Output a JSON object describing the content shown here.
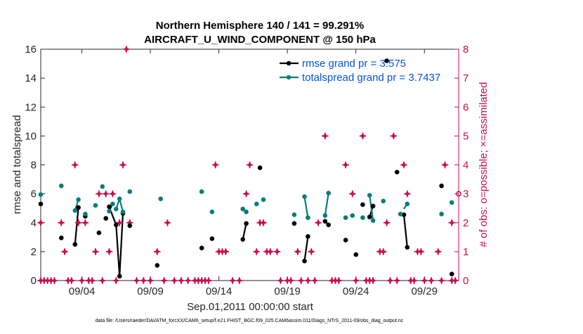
{
  "chart_data": {
    "type": "line",
    "title_line1": "Northern Hemisphere 140 / 141 = 99.291%",
    "title_line2": "AIRCRAFT_U_WIND_COMPONENT @ 150 hPa",
    "xlabel": "Sep.01,2011 00:00:00 start",
    "ylabel_left": "rmse and totalspread",
    "ylabel_right": "# of obs: o=possible; ×=assimilated",
    "ylim_left": [
      0,
      16
    ],
    "ylim_right": [
      0,
      8
    ],
    "xlim": [
      1.0,
      31.5
    ],
    "x_ticks": [
      4,
      9,
      14,
      19,
      24,
      29
    ],
    "x_tick_labels": [
      "09/04",
      "09/09",
      "09/14",
      "09/19",
      "09/24",
      "09/29"
    ],
    "y_left_ticks": [
      "0",
      "2",
      "4",
      "6",
      "8",
      "10",
      "12",
      "14",
      "16"
    ],
    "y_right_ticks": [
      "0",
      "1",
      "2",
      "3",
      "4",
      "5",
      "6",
      "7",
      "8"
    ],
    "legend": [
      "rmse grand pr = 3.575",
      "totalspread grand pr = 3.7437"
    ],
    "footnote": "data file: /Users/raeder/DAI/ATM_forcXX/CAM6_setup/f.e21.FHIST_BGC.f09_025.CAM6assim.011/Diags_NTrS_2011-09/obs_diag_output.nc",
    "series": [
      {
        "name": "rmse",
        "color": "#000000",
        "points": [
          [
            1.0,
            5.3
          ],
          [
            2.5,
            2.95
          ],
          [
            3.5,
            2.5
          ],
          [
            3.75,
            5.05
          ],
          [
            4.25,
            4.45
          ],
          [
            5.25,
            3.3
          ],
          [
            5.75,
            4.3
          ],
          [
            6.0,
            5.1
          ],
          [
            6.5,
            3.85
          ],
          [
            6.75,
            0.3
          ],
          [
            7.0,
            4.65
          ],
          [
            7.5,
            3.8
          ],
          [
            9.5,
            1.05
          ],
          [
            12.75,
            2.25
          ],
          [
            13.5,
            2.9
          ],
          [
            15.75,
            2.85
          ],
          [
            16.0,
            3.95
          ],
          [
            17.0,
            7.8
          ],
          [
            19.5,
            3.95
          ],
          [
            20.25,
            1.35
          ],
          [
            20.5,
            3.05
          ],
          [
            21.75,
            4.1
          ],
          [
            22.0,
            3.85
          ],
          [
            23.25,
            2.8
          ],
          [
            24.0,
            1.8
          ],
          [
            24.5,
            5.25
          ],
          [
            25.0,
            4.4
          ],
          [
            25.25,
            5.15
          ],
          [
            26.25,
            15.2
          ],
          [
            27.0,
            7.5
          ],
          [
            27.5,
            4.55
          ],
          [
            27.75,
            2.3
          ],
          [
            30.25,
            6.55
          ],
          [
            31.0,
            0.45
          ]
        ],
        "segments": [
          [
            [
              3.5,
              2.5
            ],
            [
              3.75,
              5.05
            ]
          ],
          [
            [
              6.0,
              5.1
            ],
            [
              6.5,
              3.85
            ],
            [
              6.75,
              0.3
            ],
            [
              7.0,
              4.65
            ]
          ],
          [
            [
              15.75,
              2.85
            ],
            [
              16.0,
              3.95
            ]
          ],
          [
            [
              20.25,
              1.35
            ],
            [
              20.5,
              3.05
            ]
          ],
          [
            [
              21.75,
              4.1
            ],
            [
              22.0,
              3.85
            ]
          ],
          [
            [
              25.0,
              4.4
            ],
            [
              25.25,
              5.15
            ]
          ],
          [
            [
              27.5,
              4.55
            ],
            [
              27.75,
              2.3
            ]
          ]
        ]
      },
      {
        "name": "totalspread",
        "color": "#0b7b7b",
        "points": [
          [
            1.0,
            5.95
          ],
          [
            2.5,
            6.55
          ],
          [
            3.5,
            4.85
          ],
          [
            3.75,
            5.6
          ],
          [
            4.25,
            4.6
          ],
          [
            5.0,
            5.2
          ],
          [
            5.5,
            6.5
          ],
          [
            6.0,
            4.8
          ],
          [
            6.25,
            5.3
          ],
          [
            6.5,
            4.95
          ],
          [
            6.75,
            5.65
          ],
          [
            7.0,
            4.75
          ],
          [
            7.5,
            6.15
          ],
          [
            9.75,
            5.65
          ],
          [
            12.75,
            6.15
          ],
          [
            13.5,
            4.75
          ],
          [
            15.75,
            4.95
          ],
          [
            16.0,
            4.75
          ],
          [
            16.75,
            5.3
          ],
          [
            17.25,
            5.6
          ],
          [
            19.5,
            4.55
          ],
          [
            20.25,
            5.8
          ],
          [
            20.5,
            4.35
          ],
          [
            21.75,
            4.5
          ],
          [
            22.0,
            6.05
          ],
          [
            23.25,
            4.35
          ],
          [
            23.75,
            4.5
          ],
          [
            24.5,
            4.35
          ],
          [
            25.0,
            5.9
          ],
          [
            25.25,
            4.15
          ],
          [
            26.0,
            5.5
          ],
          [
            27.25,
            4.6
          ],
          [
            27.75,
            5.3
          ],
          [
            30.25,
            4.6
          ],
          [
            31.0,
            5.4
          ]
        ],
        "segments": [
          [
            [
              3.5,
              4.85
            ],
            [
              3.75,
              5.6
            ]
          ],
          [
            [
              6.0,
              4.8
            ],
            [
              6.25,
              5.3
            ]
          ],
          [
            [
              6.5,
              4.95
            ],
            [
              6.75,
              5.65
            ],
            [
              7.0,
              4.75
            ]
          ],
          [
            [
              15.75,
              4.95
            ],
            [
              16.0,
              4.75
            ]
          ],
          [
            [
              20.25,
              5.8
            ],
            [
              20.5,
              4.35
            ]
          ],
          [
            [
              21.75,
              4.5
            ],
            [
              22.0,
              6.05
            ]
          ],
          [
            [
              25.0,
              5.9
            ],
            [
              25.25,
              4.15
            ]
          ],
          [
            [
              27.5,
              4.95
            ],
            [
              27.75,
              5.3
            ]
          ]
        ]
      },
      {
        "name": "obs_count",
        "axis": "right",
        "color": "#cc0c50",
        "points": [
          [
            1.0,
            0
          ],
          [
            1.0,
            2
          ],
          [
            1.25,
            0
          ],
          [
            1.5,
            0
          ],
          [
            1.75,
            0
          ],
          [
            2.0,
            0
          ],
          [
            2.5,
            2
          ],
          [
            2.75,
            1
          ],
          [
            3.0,
            0
          ],
          [
            3.25,
            0
          ],
          [
            3.5,
            4
          ],
          [
            3.75,
            2
          ],
          [
            4.0,
            0
          ],
          [
            4.25,
            2
          ],
          [
            4.5,
            0
          ],
          [
            4.75,
            0
          ],
          [
            5.0,
            1
          ],
          [
            5.25,
            3
          ],
          [
            5.5,
            0
          ],
          [
            5.75,
            3
          ],
          [
            6.0,
            1
          ],
          [
            6.25,
            3
          ],
          [
            6.5,
            0
          ],
          [
            6.75,
            2
          ],
          [
            7.0,
            4
          ],
          [
            7.25,
            8
          ],
          [
            7.5,
            2
          ],
          [
            8.0,
            0
          ],
          [
            8.5,
            0
          ],
          [
            9.0,
            0
          ],
          [
            9.5,
            1
          ],
          [
            10.0,
            0
          ],
          [
            10.25,
            2
          ],
          [
            10.75,
            0
          ],
          [
            11.25,
            0
          ],
          [
            11.75,
            0
          ],
          [
            12.25,
            0
          ],
          [
            12.5,
            0
          ],
          [
            12.75,
            0
          ],
          [
            13.0,
            0
          ],
          [
            13.25,
            0
          ],
          [
            13.75,
            4
          ],
          [
            14.0,
            1
          ],
          [
            14.25,
            1
          ],
          [
            14.5,
            1
          ],
          [
            15.0,
            0
          ],
          [
            15.5,
            0
          ],
          [
            16.0,
            3
          ],
          [
            16.25,
            4
          ],
          [
            16.75,
            1
          ],
          [
            17.0,
            2
          ],
          [
            17.25,
            2
          ],
          [
            17.5,
            1
          ],
          [
            17.75,
            1
          ],
          [
            18.25,
            1
          ],
          [
            18.5,
            0
          ],
          [
            19.0,
            0
          ],
          [
            19.25,
            0
          ],
          [
            19.75,
            1
          ],
          [
            20.0,
            0
          ],
          [
            20.5,
            0
          ],
          [
            20.75,
            1
          ],
          [
            21.0,
            0
          ],
          [
            21.25,
            2
          ],
          [
            21.75,
            5
          ],
          [
            22.25,
            0
          ],
          [
            22.5,
            0
          ],
          [
            22.75,
            0
          ],
          [
            23.25,
            4
          ],
          [
            23.75,
            3
          ],
          [
            24.0,
            0
          ],
          [
            24.5,
            5
          ],
          [
            24.75,
            0
          ],
          [
            25.0,
            0
          ],
          [
            25.25,
            0
          ],
          [
            25.75,
            1
          ],
          [
            26.0,
            1
          ],
          [
            26.25,
            2
          ],
          [
            26.5,
            0
          ],
          [
            26.75,
            5
          ],
          [
            27.0,
            0
          ],
          [
            27.5,
            4
          ],
          [
            27.75,
            3
          ],
          [
            28.0,
            0
          ],
          [
            28.25,
            0
          ],
          [
            28.5,
            1
          ],
          [
            28.75,
            1
          ],
          [
            29.0,
            0
          ],
          [
            29.5,
            0
          ],
          [
            30.0,
            1
          ],
          [
            30.25,
            0
          ],
          [
            30.5,
            4
          ],
          [
            31.0,
            0
          ],
          [
            31.0,
            2
          ],
          [
            31.25,
            0
          ]
        ]
      },
      {
        "name": "obs_possible",
        "axis": "right",
        "color": "#cc0c50",
        "marker": "circle",
        "points": [
          [
            31.5,
            3.0
          ]
        ]
      }
    ]
  }
}
